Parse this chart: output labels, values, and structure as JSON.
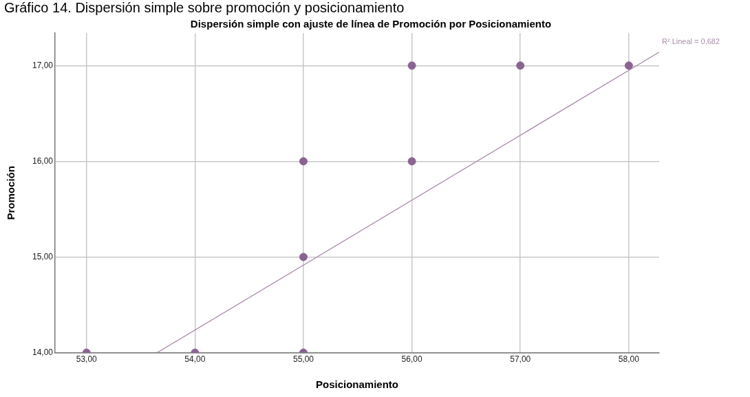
{
  "chart_data": {
    "type": "scatter",
    "title": "Dispersión simple con ajuste de línea de Promoción por Posicionamiento",
    "xlabel": "Posicionamiento",
    "ylabel": "Promoción",
    "annotations": [
      "Gráfico 14. Dispersión simple sobre promoción y posicionamiento",
      {
        "text": "R² Lineal = 0,682",
        "x": 58.28,
        "y": 17.14
      }
    ],
    "xlim": [
      52.71,
      58.28
    ],
    "ylim": [
      14,
      17.34
    ],
    "xticks": [
      {
        "value": 53,
        "label": "53,00"
      },
      {
        "value": 54,
        "label": "54,00"
      },
      {
        "value": 55,
        "label": "55,00"
      },
      {
        "value": 56,
        "label": "56,00"
      },
      {
        "value": 57,
        "label": "57,00"
      },
      {
        "value": 58,
        "label": "58,00"
      }
    ],
    "yticks": [
      {
        "value": 14,
        "label": "14,00"
      },
      {
        "value": 15,
        "label": "15,00"
      },
      {
        "value": 16,
        "label": "16,00"
      },
      {
        "value": 17,
        "label": "17,00"
      }
    ],
    "grid": true,
    "legend": false,
    "marker": "circle",
    "series": [
      {
        "type": "scatter",
        "color": "#8a6491",
        "x": [
          53,
          54,
          55,
          55,
          55,
          56,
          56,
          57,
          58
        ],
        "values": [
          14,
          14,
          14,
          15,
          16,
          16,
          17,
          17,
          17
        ]
      },
      {
        "type": "line",
        "color": "#a98cab",
        "line_style": "solid",
        "marker": "none",
        "x": [
          53.65,
          58.28
        ],
        "values": [
          14,
          17.14
        ]
      }
    ]
  }
}
